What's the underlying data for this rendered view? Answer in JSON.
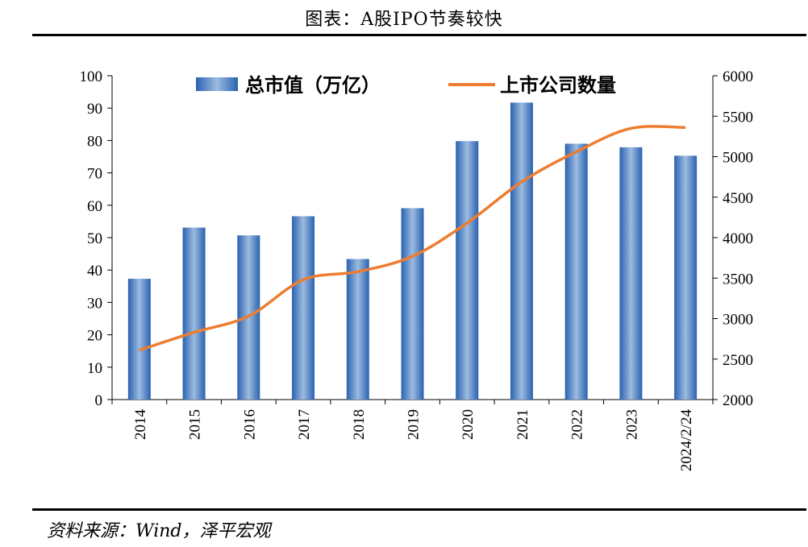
{
  "title": "图表：A股IPO节奏较快",
  "source": "资料来源：Wind，泽平宏观",
  "chart_data": {
    "type": "bar",
    "categories": [
      "2014",
      "2015",
      "2016",
      "2017",
      "2018",
      "2019",
      "2020",
      "2021",
      "2022",
      "2023",
      "2024/2/24"
    ],
    "series": [
      {
        "name": "总市值（万亿）",
        "type": "bar",
        "axis": "left",
        "color": "#3a7cc7",
        "values": [
          37.3,
          53.1,
          50.7,
          56.6,
          43.4,
          59.1,
          79.8,
          91.7,
          79.0,
          77.9,
          75.3
        ]
      },
      {
        "name": "上市公司数量",
        "type": "line",
        "axis": "right",
        "color": "#ed7d31",
        "values": [
          2610,
          2830,
          3030,
          3480,
          3580,
          3770,
          4180,
          4690,
          5060,
          5350,
          5360
        ]
      }
    ],
    "y_left": {
      "min": 0,
      "max": 100,
      "ticks": [
        0,
        10,
        20,
        30,
        40,
        50,
        60,
        70,
        80,
        90,
        100
      ]
    },
    "y_right": {
      "min": 2000,
      "max": 6000,
      "ticks": [
        2000,
        2500,
        3000,
        3500,
        4000,
        4500,
        5000,
        5500,
        6000
      ]
    },
    "legend_position": "top-center",
    "grid": false
  }
}
